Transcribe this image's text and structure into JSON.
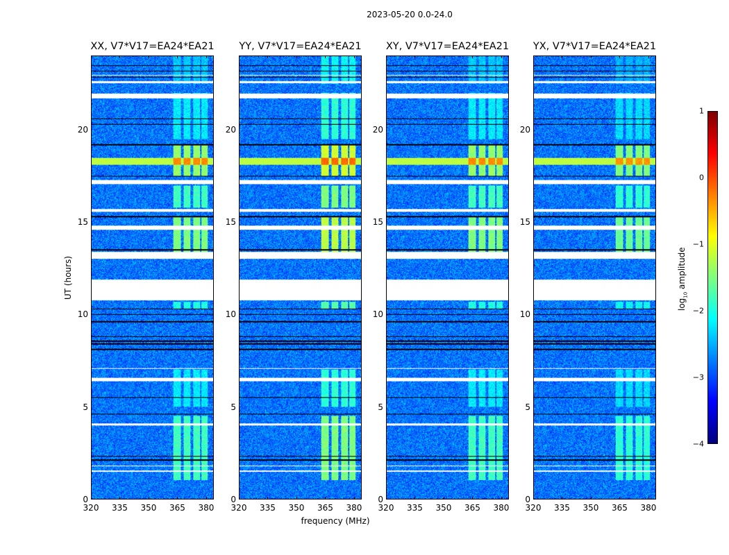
{
  "chart_data": {
    "type": "heatmap",
    "suptitle": "2023-05-20 0.0-24.0",
    "panels": [
      {
        "title": "XX, V7*V17=EA24*EA21",
        "pol": "XX"
      },
      {
        "title": "YY, V7*V17=EA24*EA21",
        "pol": "YY"
      },
      {
        "title": "XY, V7*V17=EA24*EA21",
        "pol": "XY"
      },
      {
        "title": "YX, V7*V17=EA24*EA21",
        "pol": "YX"
      }
    ],
    "xlabel": "frequency (MHz)",
    "ylabel": "UT (hours)",
    "xlim": [
      320,
      384
    ],
    "ylim": [
      0,
      24
    ],
    "xticks": [
      "320",
      "335",
      "350",
      "365",
      "380"
    ],
    "xtick_values": [
      320,
      335,
      350,
      365,
      380
    ],
    "yticks": [
      "0",
      "5",
      "10",
      "15",
      "20"
    ],
    "ytick_values": [
      0,
      5,
      10,
      15,
      20
    ],
    "colorbar": {
      "label": "log10 amplitude",
      "label_main": "log",
      "label_sub": "10",
      "label_rest": " amplitude",
      "colormap": "jet",
      "range": [
        -4,
        1
      ],
      "ticks": [
        "1",
        "0",
        "−1",
        "−2",
        "−3",
        "−4"
      ],
      "tick_values": [
        1,
        0,
        -1,
        -2,
        -3,
        -4
      ]
    },
    "background_log_amplitude": -2.8,
    "flagged_gaps_hours": [
      [
        10.75,
        11.9
      ],
      [
        13.03,
        13.37
      ],
      [
        14.6,
        14.8
      ],
      [
        15.55,
        15.7
      ],
      [
        17.05,
        17.3
      ],
      [
        21.7,
        21.98
      ],
      [
        6.37,
        6.55
      ],
      [
        3.97,
        4.1
      ],
      [
        1.45,
        1.52
      ],
      [
        1.75,
        1.8
      ],
      [
        7.05,
        7.1
      ],
      [
        22.55,
        22.65
      ],
      [
        22.95,
        23.0
      ]
    ],
    "dark_lines_hours": [
      8.4,
      8.55,
      8.8,
      9.6,
      10.0,
      10.3,
      13.5,
      15.3,
      17.5,
      19.2,
      20.3,
      20.6,
      21.8,
      22.85,
      23.2,
      23.5,
      2.1,
      2.3,
      4.6,
      5.5,
      8.1
    ],
    "rfi_channels_mhz": [
      [
        363,
        367
      ],
      [
        368.5,
        372
      ],
      [
        373.5,
        377
      ],
      [
        378,
        381
      ]
    ],
    "rfi_periods": [
      {
        "hours": [
          1.0,
          4.5
        ],
        "log_amplitude": -1.8
      },
      {
        "hours": [
          5.0,
          7.0
        ],
        "log_amplitude": -2.2
      },
      {
        "hours": [
          10.3,
          10.7
        ],
        "log_amplitude": -2.0
      },
      {
        "hours": [
          13.4,
          15.3
        ],
        "log_amplitude": -1.5
      },
      {
        "hours": [
          15.8,
          17.0
        ],
        "log_amplitude": -1.8
      },
      {
        "hours": [
          17.5,
          19.2
        ],
        "log_amplitude": -1.4
      },
      {
        "hours": [
          19.5,
          22.0
        ],
        "log_amplitude": -2.2
      },
      {
        "hours": [
          22.5,
          24.0
        ],
        "log_amplitude": -2.4
      }
    ],
    "broadband_event": {
      "hours": [
        18.1,
        18.5
      ],
      "log_amplitude": -1.2,
      "peak_log_amplitude": -0.3
    }
  }
}
